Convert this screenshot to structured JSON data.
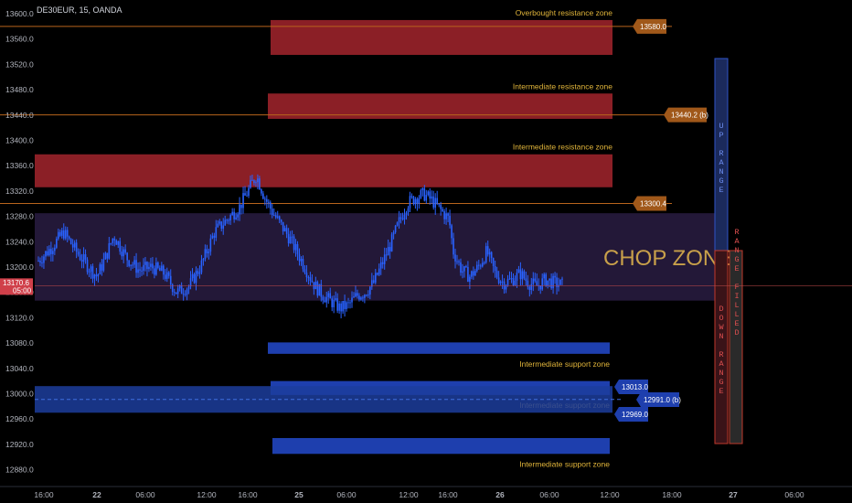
{
  "header": {
    "symbol_line": "DE30EUR, 15, OANDA"
  },
  "colors": {
    "background": "#000000",
    "candle": "#2962ff",
    "resistance_fill": "#8b1f26",
    "support_fill": "#1e3fae",
    "support_band_fill": "#1c3d9c",
    "level_line": "#b8641c",
    "level_tag": "#a0581a",
    "chop_fill": "#231838",
    "up_range": "#1b2a5c",
    "down_range": "#3a1318",
    "range_filled": "#2a2a2a",
    "label_text": "#e0b43a"
  },
  "chart_data": {
    "type": "candlestick",
    "title": "DE30EUR, 15, OANDA",
    "y_axis": {
      "ylim": [
        12860,
        13610
      ],
      "ticks": [
        "13600.0",
        "13560.0",
        "13520.0",
        "13480.0",
        "13440.0",
        "13400.0",
        "13360.0",
        "13320.0",
        "13280.0",
        "13240.0",
        "13200.0",
        "13160.0",
        "13120.0",
        "13080.0",
        "13040.0",
        "13000.0",
        "12960.0",
        "12920.0",
        "12880.0"
      ]
    },
    "x_axis": {
      "ticks": [
        "16:00",
        "22",
        "06:00",
        "12:00",
        "16:00",
        "25",
        "06:00",
        "12:00",
        "16:00",
        "26",
        "06:00",
        "12:00",
        "18:00",
        "27",
        "06:00"
      ]
    },
    "price_path": [
      [
        0,
        13210
      ],
      [
        3,
        13230
      ],
      [
        6,
        13255
      ],
      [
        9,
        13225
      ],
      [
        12,
        13200
      ],
      [
        14,
        13185
      ],
      [
        16,
        13215
      ],
      [
        18,
        13250
      ],
      [
        21,
        13215
      ],
      [
        24,
        13195
      ],
      [
        27,
        13200
      ],
      [
        30,
        13190
      ],
      [
        33,
        13160
      ],
      [
        36,
        13170
      ],
      [
        39,
        13205
      ],
      [
        42,
        13255
      ],
      [
        45,
        13275
      ],
      [
        48,
        13295
      ],
      [
        50,
        13320
      ],
      [
        52,
        13345
      ],
      [
        54,
        13310
      ],
      [
        56,
        13285
      ],
      [
        58,
        13265
      ],
      [
        60,
        13245
      ],
      [
        62,
        13220
      ],
      [
        64,
        13195
      ],
      [
        66,
        13170
      ],
      [
        68,
        13155
      ],
      [
        70,
        13145
      ],
      [
        72,
        13135
      ],
      [
        74,
        13140
      ],
      [
        76,
        13155
      ],
      [
        78,
        13160
      ],
      [
        80,
        13175
      ],
      [
        82,
        13205
      ],
      [
        84,
        13235
      ],
      [
        86,
        13270
      ],
      [
        88,
        13300
      ],
      [
        90,
        13310
      ],
      [
        92,
        13315
      ],
      [
        94,
        13305
      ],
      [
        96,
        13290
      ],
      [
        98,
        13275
      ],
      [
        99,
        13225
      ],
      [
        101,
        13195
      ],
      [
        103,
        13185
      ],
      [
        105,
        13200
      ],
      [
        107,
        13225
      ],
      [
        109,
        13190
      ],
      [
        111,
        13175
      ],
      [
        113,
        13180
      ],
      [
        115,
        13190
      ],
      [
        117,
        13175
      ],
      [
        119,
        13170
      ],
      [
        121,
        13180
      ],
      [
        123,
        13175
      ],
      [
        125,
        13172
      ]
    ],
    "current_price_tag": [
      "13170.6",
      "05:00"
    ],
    "zones": [
      {
        "kind": "resistance",
        "label": "Overbought resistance zone",
        "top": 13590,
        "bottom": 13535,
        "level": 13580.0,
        "tag": "13580.0"
      },
      {
        "kind": "resistance",
        "label": "Intermediate resistance zone",
        "top": 13474,
        "bottom": 13434,
        "level": 13440.2,
        "tag": "13440.2 (b)"
      },
      {
        "kind": "resistance",
        "label": "Intermediate resistance zone",
        "top": 13378,
        "bottom": 13326,
        "level": 13300.4,
        "tag": "13300.4"
      },
      {
        "kind": "support",
        "label": "Intermediate support zone",
        "top": 13081,
        "bottom": 13063
      },
      {
        "kind": "support",
        "label": "Intermediate support zone",
        "top": 13020,
        "bottom": 12998,
        "tags": [
          "13013.0",
          "12991.0 (b)",
          "12969.0"
        ]
      },
      {
        "kind": "support",
        "label": "Intermediate support zone",
        "top": 12930,
        "bottom": 12905
      }
    ],
    "chop_zone": {
      "label": "CHOP ZONE",
      "top": 13285,
      "bottom": 13147
    },
    "range_bars": {
      "up": "UP RANGE",
      "down": "DOWN RANGE",
      "filled": "RANGE FILLED"
    }
  }
}
